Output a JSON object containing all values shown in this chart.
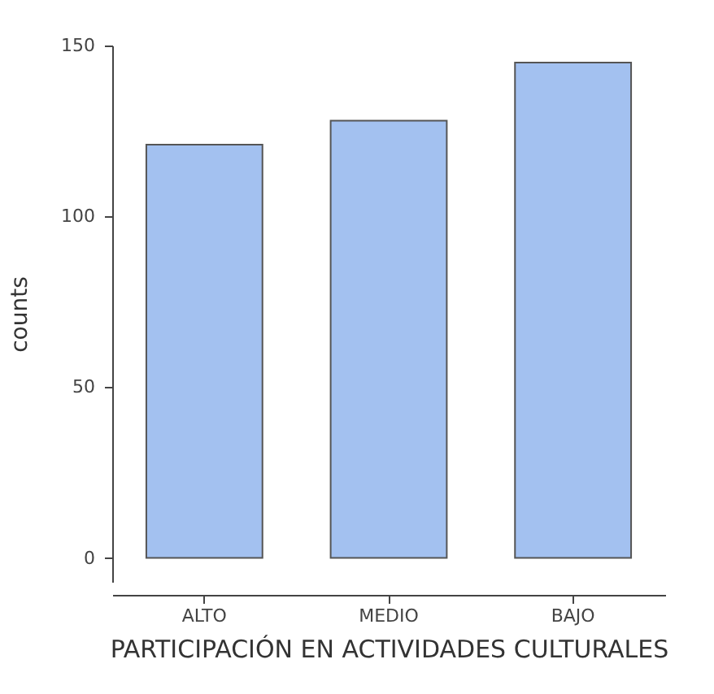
{
  "chart_data": {
    "type": "bar",
    "xlabel": "PARTICIPACIÓN EN ACTIVIDADES CULTURALES",
    "ylabel": "counts",
    "categories": [
      "ALTO",
      "MEDIO",
      "BAJO"
    ],
    "values": [
      121,
      128,
      145
    ],
    "color": "#a3c1f0",
    "ylim": [
      -7,
      150
    ],
    "yticks": [
      0,
      50,
      100,
      150
    ],
    "grid": false
  }
}
